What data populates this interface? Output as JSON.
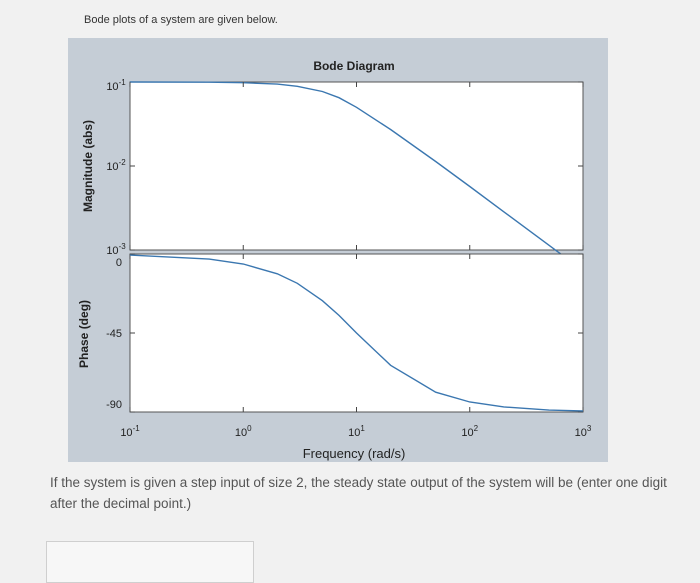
{
  "prompt_text": "Bode plots of a system are given below.",
  "question_text": "If the system is given a step input of size 2, the steady state output of the system will be (enter one digit after the decimal point.)",
  "answer": {
    "value": ""
  },
  "chart_data": [
    {
      "type": "line",
      "title": "Bode Diagram",
      "ylabel": "Magnitude (abs)",
      "xscale": "log",
      "yscale": "log",
      "xlim": [
        0.1,
        1000
      ],
      "ylim": [
        0.001,
        0.1
      ],
      "x": [
        0.1,
        0.5,
        1,
        2,
        3,
        5,
        7,
        10,
        20,
        50,
        100,
        200,
        500,
        1000
      ],
      "series": [
        {
          "values": [
            0.1,
            0.0995,
            0.098,
            0.0945,
            0.089,
            0.077,
            0.065,
            0.05,
            0.0272,
            0.0113,
            0.0057,
            0.00285,
            0.00114,
            0.00057
          ]
        }
      ],
      "yticks": [
        {
          "value": 0.1,
          "base": "10",
          "exp": "-1"
        },
        {
          "value": 0.01,
          "base": "10",
          "exp": "-2"
        },
        {
          "value": 0.001,
          "base": "10",
          "exp": "-3"
        }
      ],
      "line_color": "#3b77b0"
    },
    {
      "type": "line",
      "xlabel": "Frequency (rad/s)",
      "ylabel": "Phase (deg)",
      "xscale": "log",
      "xlim": [
        0.1,
        1000
      ],
      "ylim": [
        -90,
        0
      ],
      "x": [
        0.1,
        0.5,
        1,
        2,
        3,
        5,
        7,
        10,
        20,
        50,
        100,
        200,
        500,
        1000
      ],
      "series": [
        {
          "values": [
            -0.6,
            -2.9,
            -5.7,
            -11.3,
            -16.7,
            -26.6,
            -35,
            -45,
            -63.4,
            -78.7,
            -84.3,
            -87.1,
            -88.9,
            -89.4
          ]
        }
      ],
      "yticks": [
        {
          "value": 0,
          "label": "0"
        },
        {
          "value": -45,
          "label": "-45"
        },
        {
          "value": -90,
          "label": "-90"
        }
      ],
      "xticks": [
        {
          "value": 0.1,
          "base": "10",
          "exp": "-1"
        },
        {
          "value": 1,
          "base": "10",
          "exp": "0"
        },
        {
          "value": 10,
          "base": "10",
          "exp": "1"
        },
        {
          "value": 100,
          "base": "10",
          "exp": "2"
        },
        {
          "value": 1000,
          "base": "10",
          "exp": "3"
        }
      ],
      "line_color": "#3b77b0"
    }
  ]
}
